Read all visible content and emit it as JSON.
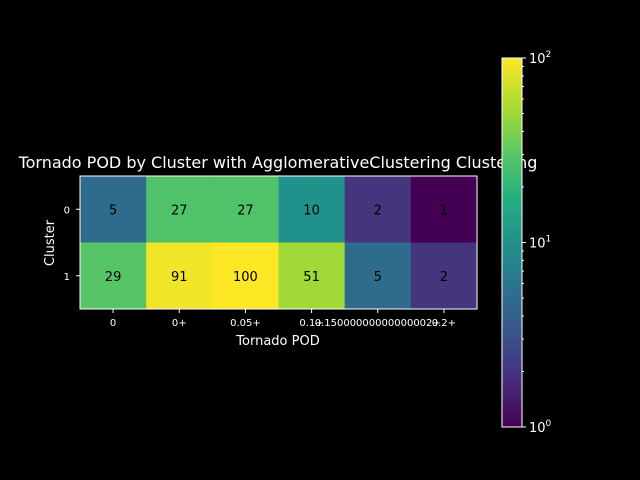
{
  "chart_data": {
    "type": "heatmap",
    "title": "Tornado POD by Cluster with AgglomerativeClustering Clustering",
    "xlabel": "Tornado POD",
    "ylabel": "Cluster",
    "x_categories": [
      "0",
      "0+",
      "0.05+",
      "0.1+",
      "0.15000000000000002+",
      "0.2+"
    ],
    "y_categories": [
      "0",
      "1"
    ],
    "values": [
      [
        5,
        27,
        27,
        10,
        2,
        1
      ],
      [
        29,
        91,
        100,
        51,
        5,
        2
      ]
    ],
    "colorbar": {
      "scale": "log",
      "colormap": "viridis",
      "range": [
        1,
        100
      ],
      "tick_labels": [
        {
          "base": "10",
          "exp": "2",
          "value": 100
        },
        {
          "base": "10",
          "exp": "1",
          "value": 10
        },
        {
          "base": "10",
          "exp": "0",
          "value": 1
        }
      ]
    }
  }
}
